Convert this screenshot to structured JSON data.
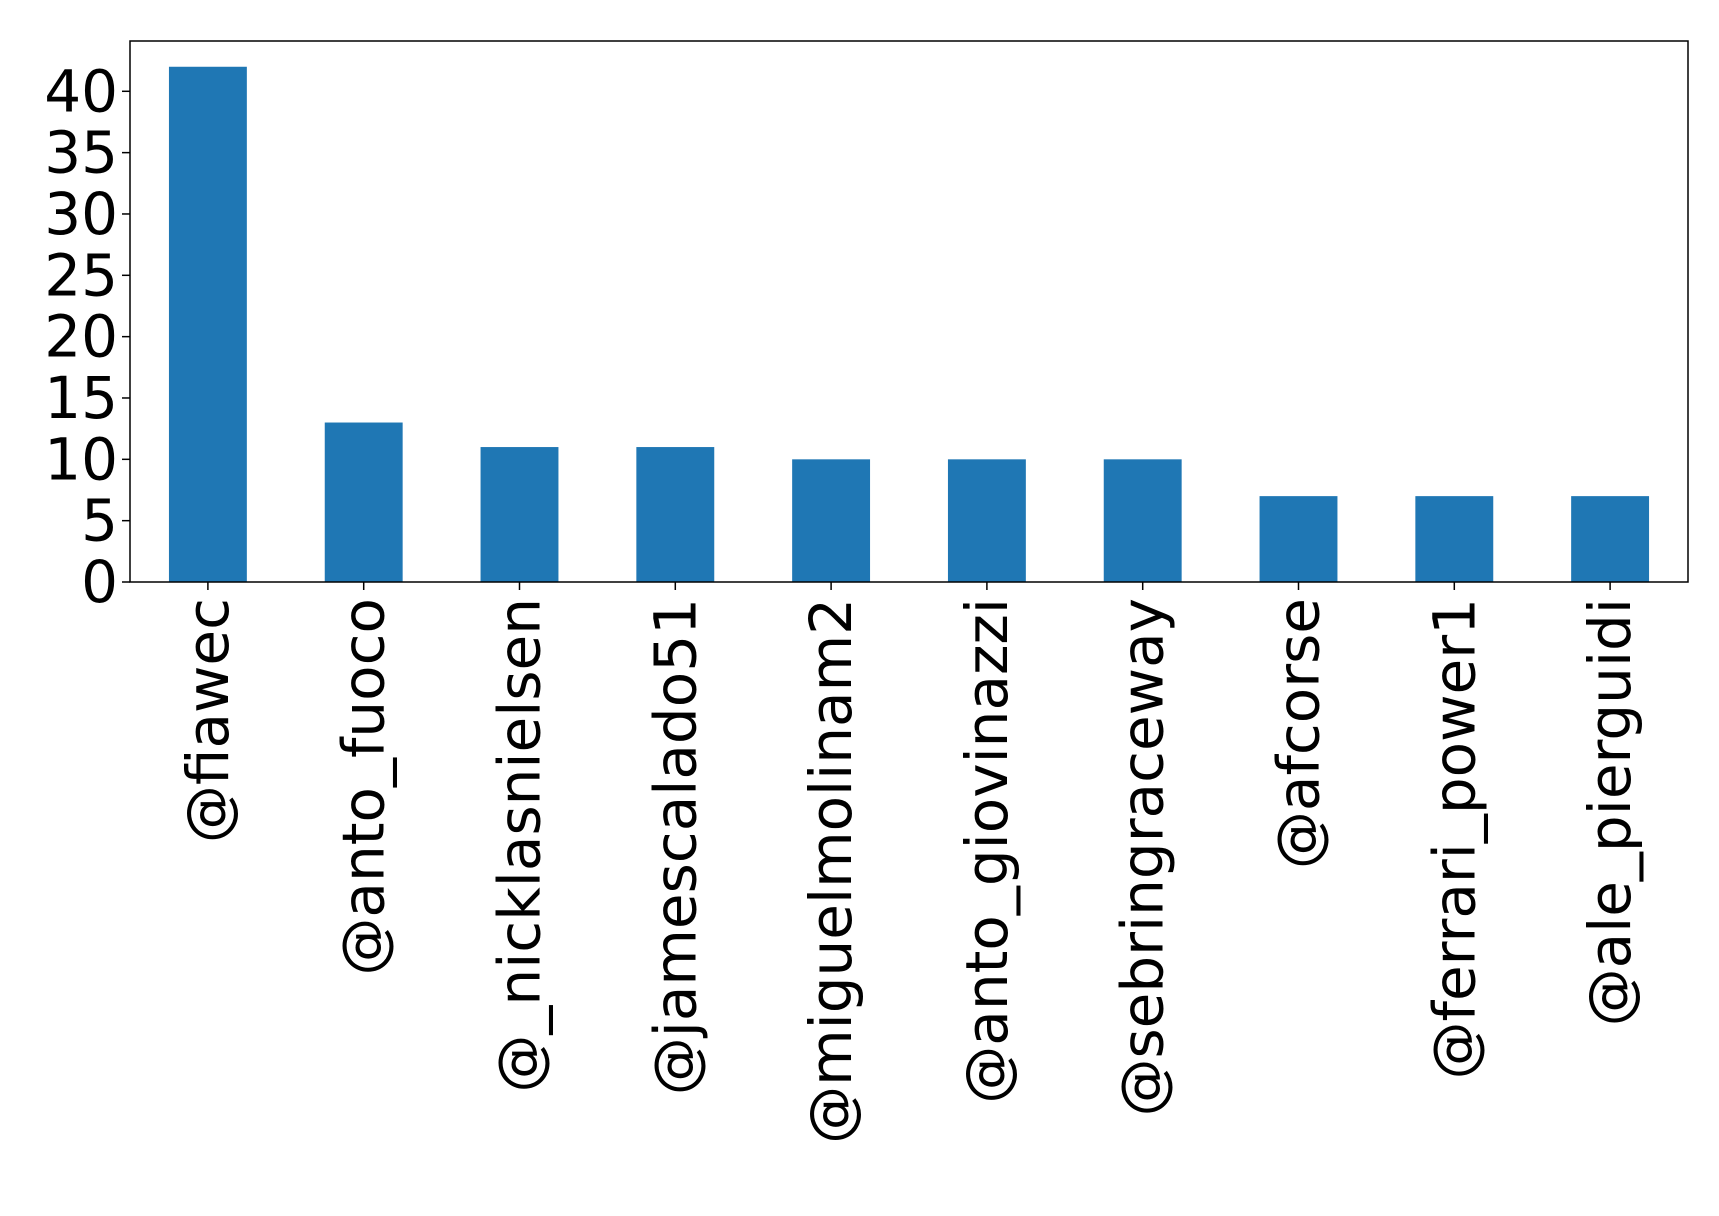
{
  "chart_data": {
    "type": "bar",
    "categories": [
      "@fiawec",
      "@anto_fuoco",
      "@_nicklasnielsen",
      "@jamescalado51",
      "@miguelmolinam2",
      "@anto_giovinazzi",
      "@sebringraceway",
      "@afcorse",
      "@ferrari_power1",
      "@ale_pierguidi"
    ],
    "values": [
      42,
      13,
      11,
      11,
      10,
      10,
      10,
      7,
      7,
      7
    ],
    "yticks": [
      0,
      5,
      10,
      15,
      20,
      25,
      30,
      35,
      40
    ],
    "ylim": [
      0,
      44.1
    ],
    "grid": false,
    "bar_color": "#1f77b4",
    "title": "",
    "xlabel": "",
    "ylabel": ""
  }
}
